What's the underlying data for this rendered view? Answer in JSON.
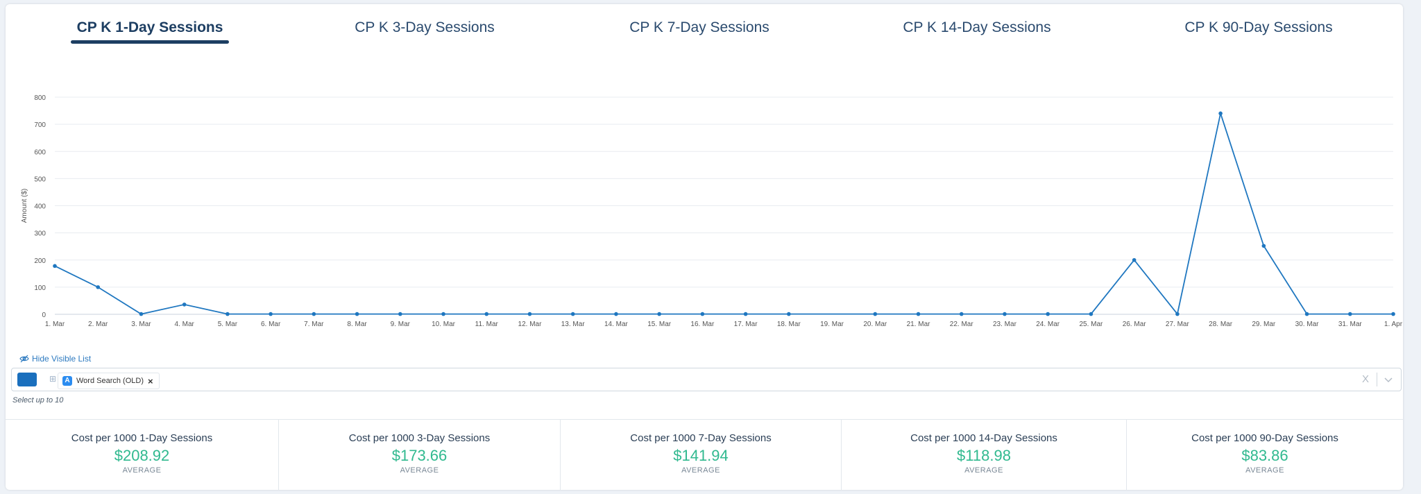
{
  "tabs": [
    {
      "label": "CP K 1-Day Sessions",
      "active": true
    },
    {
      "label": "CP K 3-Day Sessions",
      "active": false
    },
    {
      "label": "CP K 7-Day Sessions",
      "active": false
    },
    {
      "label": "CP K 14-Day Sessions",
      "active": false
    },
    {
      "label": "CP K 90-Day Sessions",
      "active": false
    }
  ],
  "chart_data": {
    "type": "line",
    "ylabel": "Amount ($)",
    "ylim": [
      0,
      800
    ],
    "yticks": [
      0,
      100,
      200,
      300,
      400,
      500,
      600,
      700,
      800
    ],
    "categories": [
      "1. Mar",
      "2. Mar",
      "3. Mar",
      "4. Mar",
      "5. Mar",
      "6. Mar",
      "7. Mar",
      "8. Mar",
      "9. Mar",
      "10. Mar",
      "11. Mar",
      "12. Mar",
      "13. Mar",
      "14. Mar",
      "15. Mar",
      "16. Mar",
      "17. Mar",
      "18. Mar",
      "19. Mar",
      "20. Mar",
      "21. Mar",
      "22. Mar",
      "23. Mar",
      "24. Mar",
      "25. Mar",
      "26. Mar",
      "27. Mar",
      "28. Mar",
      "29. Mar",
      "30. Mar",
      "31. Mar",
      "1. Apr"
    ],
    "values": [
      178,
      100,
      1,
      36,
      1,
      1,
      1,
      1,
      1,
      1,
      1,
      1,
      1,
      1,
      1,
      1,
      1,
      1,
      null,
      1,
      1,
      1,
      1,
      1,
      1,
      200,
      1,
      740,
      252,
      1,
      1,
      1
    ],
    "grid": true,
    "legend": "none",
    "color": "#1f77c0"
  },
  "filter": {
    "toggle_label": "Hide Visible List",
    "selected_chip": "Word Search (OLD)",
    "clear_label": "X",
    "helper": "Select up to 10"
  },
  "stats": [
    {
      "title": "Cost per 1000 1-Day Sessions",
      "value": "$208.92",
      "label": "AVERAGE"
    },
    {
      "title": "Cost per 1000 3-Day Sessions",
      "value": "$173.66",
      "label": "AVERAGE"
    },
    {
      "title": "Cost per 1000 7-Day Sessions",
      "value": "$141.94",
      "label": "AVERAGE"
    },
    {
      "title": "Cost per 1000 14-Day Sessions",
      "value": "$118.98",
      "label": "AVERAGE"
    },
    {
      "title": "Cost per 1000 90-Day Sessions",
      "value": "$83.86",
      "label": "AVERAGE"
    }
  ]
}
